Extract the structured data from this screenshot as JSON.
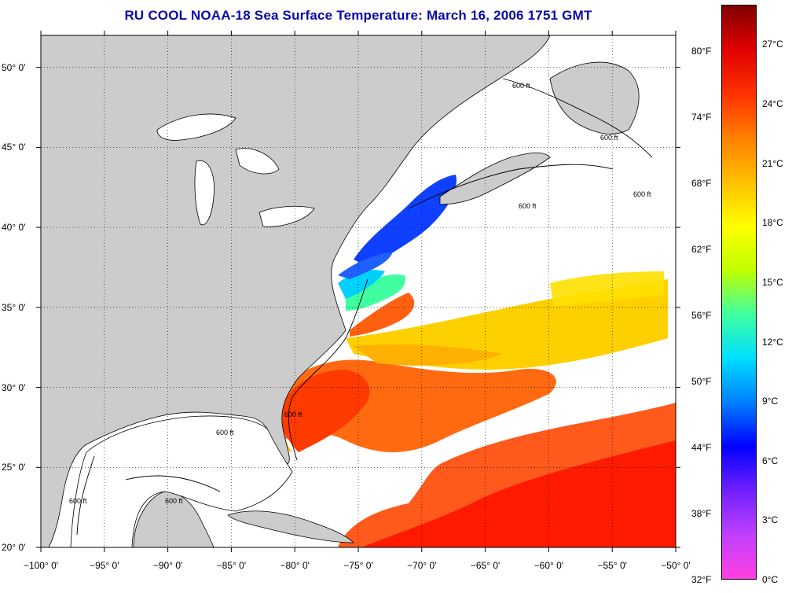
{
  "title": "RU COOL  NOAA-18  Sea Surface Temperature:  March 16, 2006 1751 GMT",
  "map": {
    "lon_range": [
      -100,
      -50
    ],
    "lat_range": [
      20,
      52
    ],
    "lat_ticks": [
      {
        "value": 20,
        "label": "20° 0'"
      },
      {
        "value": 25,
        "label": "25° 0'"
      },
      {
        "value": 30,
        "label": "30° 0'"
      },
      {
        "value": 35,
        "label": "35° 0'"
      },
      {
        "value": 40,
        "label": "40° 0'"
      },
      {
        "value": 45,
        "label": "45° 0'"
      },
      {
        "value": 50,
        "label": "50° 0'"
      }
    ],
    "lon_ticks": [
      {
        "value": -100,
        "label": "−100° 0'"
      },
      {
        "value": -95,
        "label": "−95° 0'"
      },
      {
        "value": -90,
        "label": "−90° 0'"
      },
      {
        "value": -85,
        "label": "−85° 0'"
      },
      {
        "value": -80,
        "label": "−80° 0'"
      },
      {
        "value": -75,
        "label": "−75° 0'"
      },
      {
        "value": -70,
        "label": "−70° 0'"
      },
      {
        "value": -65,
        "label": "−65° 0'"
      },
      {
        "value": -60,
        "label": "−60° 0'"
      },
      {
        "value": -55,
        "label": "−55° 0'"
      },
      {
        "value": -50,
        "label": "−50° 0'"
      }
    ],
    "contour_labels": [
      "600 ft",
      "600 ft",
      "600 ft",
      "600 ft",
      "600 ft",
      "600 ft",
      "600 ft",
      "600 ft"
    ],
    "land_color": "#cccccc",
    "cloud_color": "#ffffff"
  },
  "colorbar": {
    "range_c": [
      0,
      29
    ],
    "fahrenheit_ticks": [
      "80°F",
      "74°F",
      "68°F",
      "62°F",
      "56°F",
      "50°F",
      "44°F",
      "38°F",
      "32°F"
    ],
    "celsius_ticks": [
      "27°C",
      "24°C",
      "21°C",
      "18°C",
      "15°C",
      "12°C",
      "9°C",
      "6°C",
      "3°C",
      "0°C"
    ],
    "colors": [
      "#ff40e0",
      "#c040ff",
      "#7020ff",
      "#0000ff",
      "#0080ff",
      "#00e0ff",
      "#40ffa0",
      "#c0ff00",
      "#ffff00",
      "#ffc000",
      "#ff8000",
      "#ff3000",
      "#e00000",
      "#800000"
    ]
  }
}
